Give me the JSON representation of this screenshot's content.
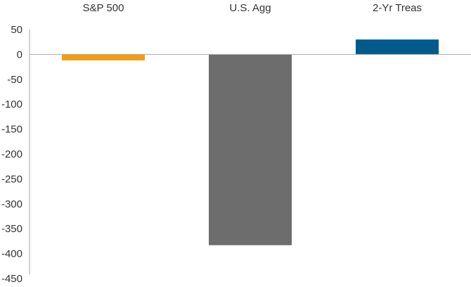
{
  "chart_data": {
    "type": "bar",
    "categories": [
      "S&P 500",
      "U.S. Agg",
      "2-Yr Treas"
    ],
    "values": [
      -12,
      -383,
      30
    ],
    "colors": [
      "#f39c12",
      "#6d6d6d",
      "#005b8a"
    ],
    "yticks": [
      50,
      0,
      -50,
      -100,
      -150,
      -200,
      -250,
      -300,
      -350,
      -400,
      -450
    ],
    "ylim": [
      -450,
      50
    ],
    "title": "",
    "xlabel": "",
    "ylabel": "",
    "grid": false,
    "category_axis_position": "top",
    "axis_color": "#aaaaaa"
  }
}
